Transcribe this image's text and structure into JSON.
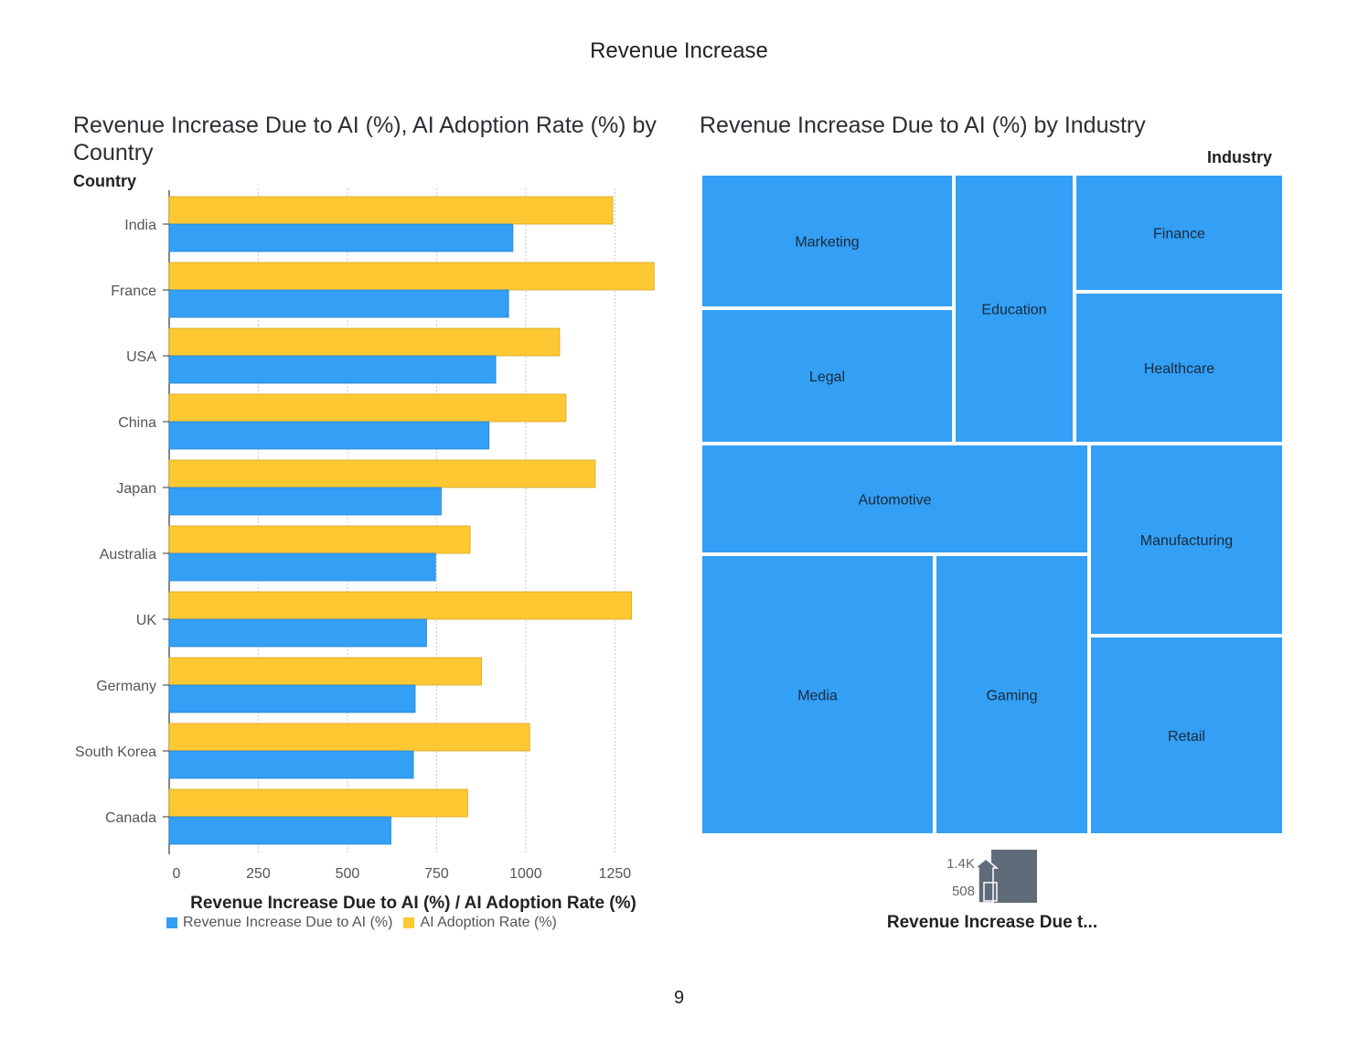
{
  "page": {
    "title": "Revenue Increase",
    "page_number": "9"
  },
  "colors": {
    "blue": "#339ff5",
    "yellow": "#fec833",
    "grid": "#c8c8c8",
    "gradient": "#5f6b79"
  },
  "chart_data": [
    {
      "type": "bar",
      "orientation": "horizontal",
      "title": "Revenue Increase Due to AI (%), AI Adoption Rate (%) by Country",
      "ylabel": "Country",
      "xlabel": "Revenue Increase Due to AI (%) / AI Adoption Rate (%)",
      "categories": [
        "India",
        "France",
        "USA",
        "China",
        "Japan",
        "Australia",
        "UK",
        "Germany",
        "South Korea",
        "Canada"
      ],
      "series": [
        {
          "name": "Revenue Increase Due to AI (%)",
          "color": "#339ff5",
          "values": [
            964,
            952,
            916,
            897,
            763,
            747,
            722,
            690,
            685,
            622
          ]
        },
        {
          "name": "AI Adoption Rate (%)",
          "color": "#fec833",
          "values": [
            1244,
            1360,
            1095,
            1113,
            1195,
            844,
            1297,
            876,
            1011,
            837
          ]
        }
      ],
      "xticks": [
        "0",
        "250",
        "500",
        "750",
        "1000",
        "1250"
      ],
      "xlim": [
        0,
        1360
      ],
      "grid": true,
      "legend": "bottom"
    },
    {
      "type": "treemap",
      "title": "Revenue Increase Due to AI (%) by Industry",
      "group_label": "Industry",
      "categories": [
        "Marketing",
        "Education",
        "Finance",
        "Legal",
        "Healthcare",
        "Automotive",
        "Manufacturing",
        "Media",
        "Gaming",
        "Retail"
      ],
      "color_legend": {
        "title": "Revenue Increase Due t...",
        "max_label": "1.4K",
        "min_label": "508"
      }
    }
  ]
}
